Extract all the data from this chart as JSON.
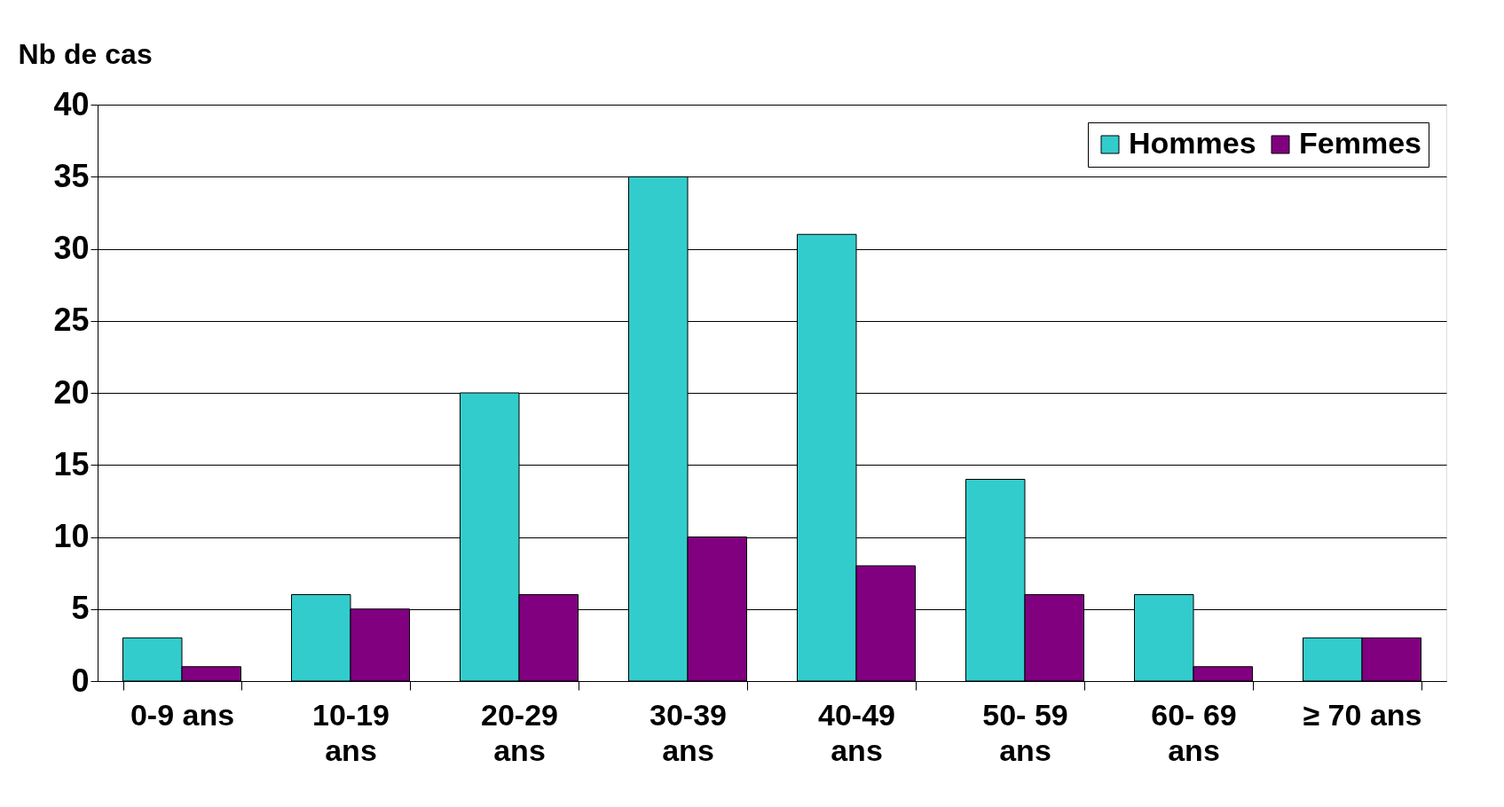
{
  "chart_data": {
    "type": "bar",
    "ylabel": "Nb de cas",
    "categories": [
      "0-9 ans",
      "10-19\nans",
      "20-29\nans",
      "30-39\nans",
      "40-49\nans",
      "50- 59\nans",
      "60- 69\nans",
      "≥ 70 ans"
    ],
    "series": [
      {
        "name": "Hommes",
        "color": "#33cccc",
        "values": [
          3,
          6,
          20,
          35,
          31,
          14,
          6,
          3
        ]
      },
      {
        "name": "Femmes",
        "color": "#800080",
        "values": [
          1,
          5,
          6,
          10,
          8,
          6,
          1,
          3
        ]
      }
    ],
    "ylim": [
      0,
      40
    ],
    "yticks": [
      0,
      5,
      10,
      15,
      20,
      25,
      30,
      35,
      40
    ],
    "grid": "y",
    "legend": "top right"
  }
}
